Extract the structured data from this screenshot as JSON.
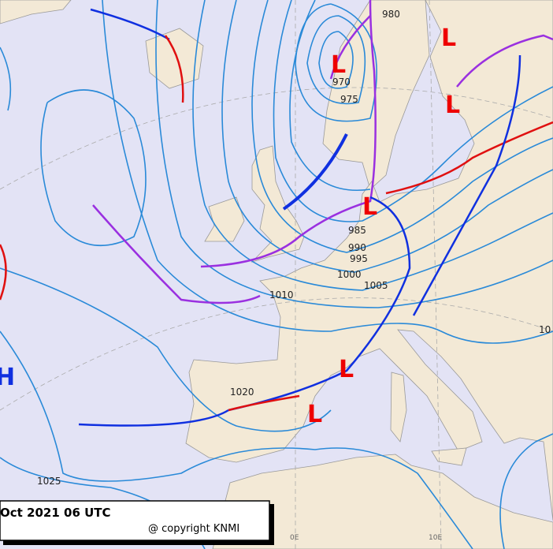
{
  "caption": {
    "date": "Oct 2021 06 UTC",
    "copyright": "@ copyright KNMI"
  },
  "isobar_labels": [
    980,
    970,
    975,
    985,
    990,
    995,
    1000,
    1005,
    1010,
    1020,
    1025,
    10
  ],
  "pressure_centers": [
    "L",
    "L",
    "L",
    "L",
    "L",
    "L",
    "H"
  ],
  "meridian_labels": [
    "0E",
    "10E"
  ]
}
